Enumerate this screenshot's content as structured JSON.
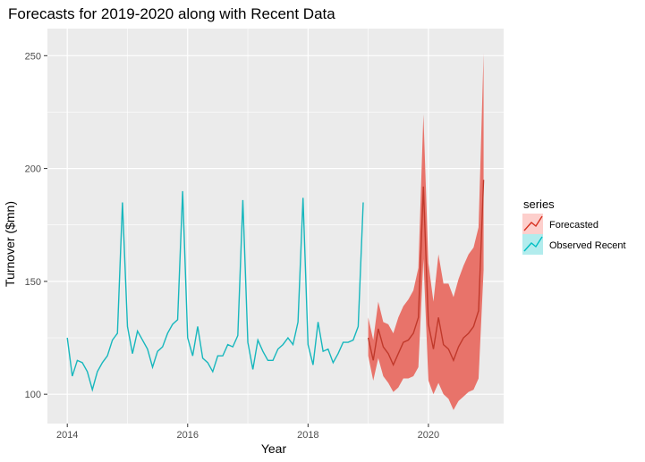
{
  "chart_data": {
    "type": "line",
    "title": "Forecasts for 2019-2020 along with Recent Data",
    "xlabel": "Year",
    "ylabel": "Turnover ($mn)",
    "xlim": [
      2013.67,
      2021.25
    ],
    "ylim": [
      87,
      262
    ],
    "x_ticks": [
      2014,
      2016,
      2018,
      2020
    ],
    "x_tick_labels": [
      "2014",
      "2016",
      "2018",
      "2020"
    ],
    "y_ticks": [
      100,
      150,
      200,
      250
    ],
    "y_tick_labels": [
      "100",
      "150",
      "200",
      "250"
    ],
    "grid": true,
    "legend": {
      "title": "series",
      "position": "right",
      "entries": [
        {
          "label": "Forecasted",
          "color": "#d7301f",
          "fill": "#f8766d"
        },
        {
          "label": "Observed Recent",
          "color": "#00bfc4",
          "fill": "#00bfc4"
        }
      ]
    },
    "colors": {
      "panel": "#ebebeb",
      "grid_major": "#ffffff",
      "observed": "#17b7bd",
      "forecast": "#c0392b",
      "interval": "#e8736a"
    },
    "series": [
      {
        "name": "Observed Recent",
        "start": "2014-01",
        "frequency": "monthly",
        "values": [
          125,
          108,
          115,
          114,
          110,
          102,
          110,
          114,
          117,
          124,
          127,
          185,
          130,
          118,
          128,
          124,
          120,
          112,
          119,
          121,
          127,
          131,
          133,
          190,
          125,
          117,
          130,
          116,
          114,
          110,
          117,
          117,
          122,
          121,
          126,
          186,
          123,
          111,
          124,
          119,
          115,
          115,
          120,
          122,
          125,
          122,
          132,
          187,
          122,
          113,
          132,
          119,
          120,
          114,
          118,
          123,
          123,
          124,
          130,
          185
        ]
      },
      {
        "name": "Forecasted",
        "start": "2019-01",
        "frequency": "monthly",
        "values": [
          125,
          115,
          129,
          121,
          118,
          113,
          118,
          123,
          124,
          127,
          134,
          192,
          131,
          120,
          134,
          122,
          120,
          115,
          121,
          125,
          127,
          130,
          137,
          195
        ],
        "lower": [
          117,
          106,
          116,
          108,
          105,
          101,
          103,
          107,
          107,
          108,
          112,
          160,
          106,
          100,
          105,
          100,
          98,
          93,
          97,
          99,
          101,
          102,
          107,
          155
        ],
        "upper": [
          134,
          124,
          141,
          132,
          131,
          127,
          134,
          139,
          142,
          146,
          156,
          224,
          158,
          141,
          162,
          149,
          149,
          143,
          151,
          157,
          162,
          165,
          174,
          251
        ]
      }
    ]
  }
}
